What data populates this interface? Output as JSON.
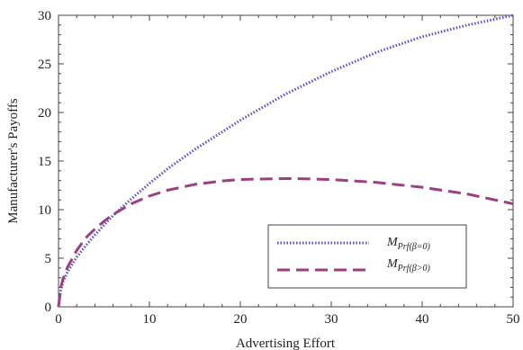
{
  "chart_data": {
    "type": "line",
    "title": "",
    "xlabel": "Advertising Effort",
    "ylabel": "Manufacturer's Payoffs",
    "xlim": [
      0,
      50
    ],
    "ylim": [
      0,
      30
    ],
    "xticks": [
      0,
      10,
      20,
      30,
      40,
      50
    ],
    "yticks": [
      0,
      5,
      10,
      15,
      20,
      25,
      30
    ],
    "grid": false,
    "legend_position": "bottom-right",
    "series": [
      {
        "name": "M_Prf(β=0)",
        "legend_main": "M",
        "legend_sub": "Prf(β=0)",
        "color": "#5a4fd0",
        "style": "dotted",
        "x": [
          0,
          0.25,
          0.5,
          1,
          2,
          3,
          4,
          5,
          6,
          8,
          10,
          12,
          15,
          18,
          20,
          25,
          30,
          35,
          40,
          45,
          50
        ],
        "y": [
          0,
          1.7,
          2.6,
          3.6,
          5.1,
          6.3,
          7.4,
          8.4,
          9.4,
          11.1,
          12.7,
          14.2,
          16.2,
          18.0,
          19.2,
          21.9,
          24.2,
          26.2,
          27.8,
          29.0,
          30.0
        ]
      },
      {
        "name": "M_Prf(β>0)",
        "legend_main": "M",
        "legend_sub": "Prf(β>0)",
        "color": "#9b3f7e",
        "style": "dashed",
        "x": [
          0,
          0.25,
          0.5,
          1,
          2,
          3,
          4,
          5,
          6,
          8,
          10,
          12,
          15,
          18,
          20,
          22,
          25,
          28,
          30,
          35,
          40,
          45,
          50
        ],
        "y": [
          0,
          2.0,
          2.9,
          4.1,
          5.8,
          7.1,
          8.0,
          8.8,
          9.5,
          10.6,
          11.4,
          12.0,
          12.6,
          12.95,
          13.1,
          13.15,
          13.2,
          13.15,
          13.1,
          12.8,
          12.3,
          11.6,
          10.6
        ]
      }
    ]
  }
}
